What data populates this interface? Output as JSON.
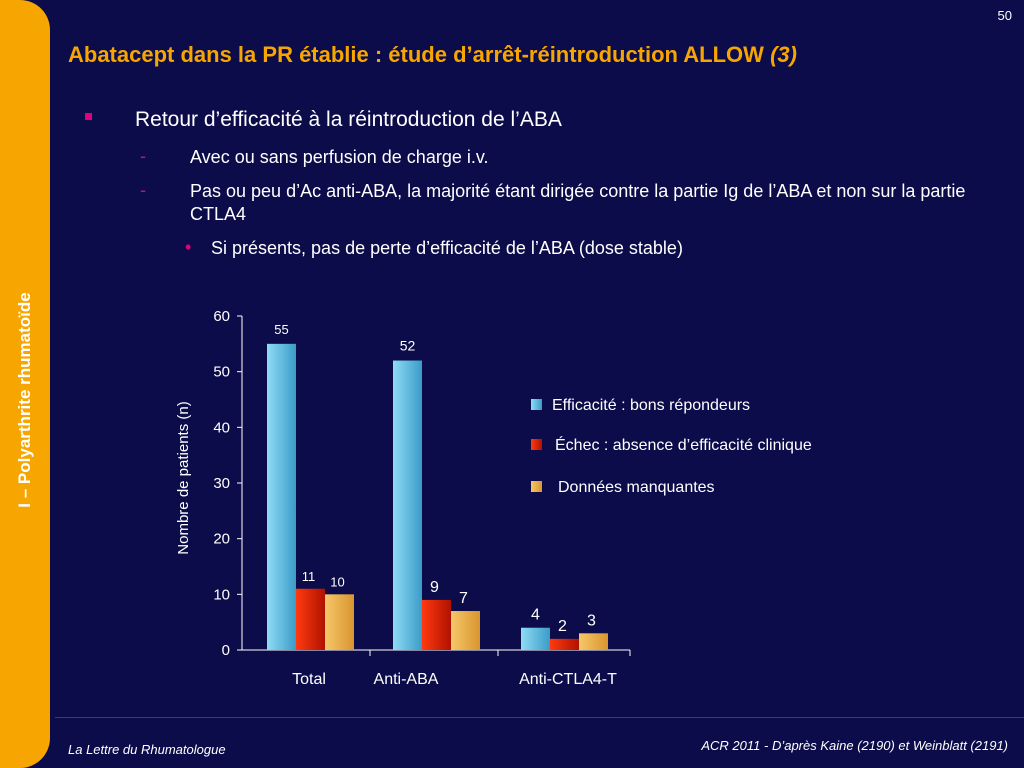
{
  "slide_number": "50",
  "sidebar_label": "I – Polyarthrite rhumatoïde",
  "title": {
    "main": "Abatacept dans la PR établie : étude d’arrêt-réintroduction ALLOW",
    "suffix": "(3)"
  },
  "bullets": {
    "level1": "Retour d’efficacité à la réintroduction de l’ABA",
    "level2": [
      "Avec ou sans perfusion de charge i.v.",
      "Pas ou peu d’Ac anti-ABA, la majorité étant dirigée contre la partie Ig de l’ABA et non sur la partie CTLA4"
    ],
    "level3": "Si présents, pas de perte d’efficacité de l’ABA (dose stable)"
  },
  "chart_data": {
    "type": "bar",
    "categories": [
      "Total",
      "Anti-ABA",
      "Anti-CTLA4-T"
    ],
    "series": [
      {
        "name": "Efficacité : bons répondeurs",
        "values": [
          55,
          52,
          4
        ],
        "color": "#4fb8e0"
      },
      {
        "name": "Échec : absence d’efficacité clinique",
        "values": [
          11,
          9,
          2
        ],
        "color": "#cc1a00"
      },
      {
        "name": "Données manquantes",
        "values": [
          10,
          7,
          3
        ],
        "color": "#e8a93a"
      }
    ],
    "ylabel": "Nombre de patients (n)",
    "ylim": [
      0,
      60
    ],
    "yticks": [
      0,
      10,
      20,
      30,
      40,
      50,
      60
    ],
    "legend": "right"
  },
  "footer": {
    "left": "La Lettre du Rhumatologue",
    "right": "ACR 2011 - D’après Kaine (2190) et Weinblatt (2191)"
  }
}
